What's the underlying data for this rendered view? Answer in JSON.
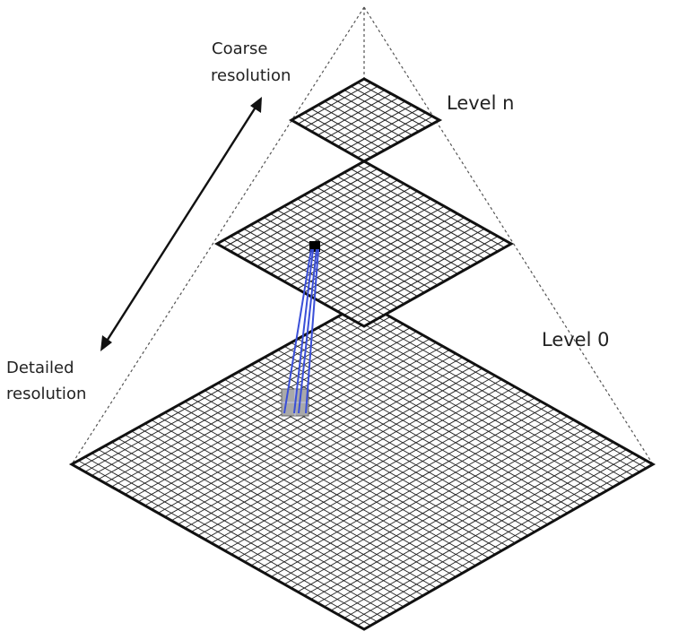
{
  "labels": {
    "coarse_line1": "Coarse",
    "coarse_line2": "resolution",
    "detailed_line1": "Detailed",
    "detailed_line2": "resolution",
    "level_top": "Level n",
    "level_bottom": "Level 0"
  },
  "pyramid": {
    "levels": [
      {
        "level": "n",
        "grid_divisions": 11
      },
      {
        "level": "middle",
        "grid_divisions": 22
      },
      {
        "level": "0",
        "grid_divisions": 44
      }
    ]
  },
  "colors": {
    "outline": "#111111",
    "grid": "#222222",
    "dashed": "#555555",
    "link": "#3a4fd8",
    "highlight_fill": "#a9a9a9",
    "parent_cell": "#000000"
  }
}
